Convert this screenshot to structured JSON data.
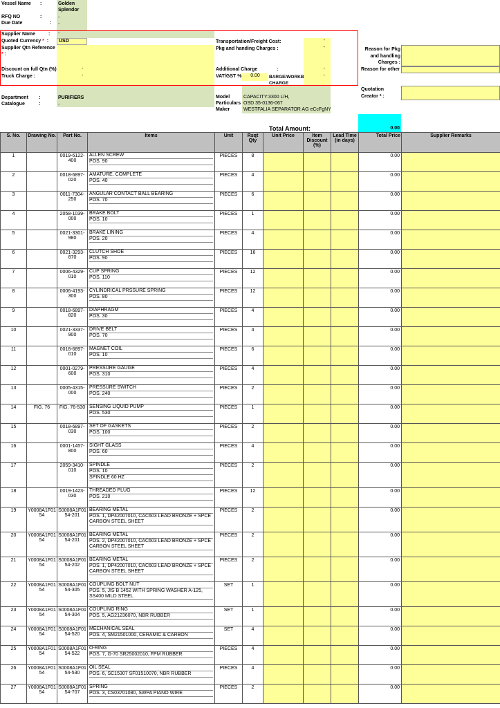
{
  "header": {
    "vessel_label": "Vessel Name",
    "vessel_value": "Golden Splendor",
    "rfq_label": "RFQ NO",
    "rfq_value": "-",
    "due_label": "Due Date",
    "due_value": "-",
    "colon": ":"
  },
  "supplier": {
    "name_label": "Supplier Name",
    "name_value": "-",
    "currency_label": "Quoted Currency",
    "currency_value": "USD",
    "ref_label": "Supplier Qtn Reference",
    "required": "*",
    "discount_label": "Discount on full Qtn  (%)",
    "discount_value": "-",
    "truck_label": "Truck Charge :",
    "truck_value": "-",
    "freight_label": "Transportation/Freight Cost:",
    "freight_value": "-",
    "pkg_label": "Pkg and handing Charges  :",
    "pkg_value": "-",
    "additional_label": "Additional Charge",
    "additional_value": "-",
    "vat_label": "VAT/GST %",
    "vat_value": "0.00",
    "barge_label": "BARGE/WORKBOAT CHARGE",
    "barge_value": "-"
  },
  "reasons": {
    "pkg_reason_label": "Reason for Pkg and handling Charges :",
    "other_reason_label": "Reason for other",
    "creator_label": "Quotation Creator * :"
  },
  "equipment": {
    "department_label": "Department",
    "department_value": "PURIFIERS",
    "catalogue_label": "Catalogue",
    "catalogue_value": "-",
    "model_label": "Model",
    "model_value": "CAPACITY:3300 L/H,",
    "particulars_label": "Particulars",
    "particulars_value": "OSD 35-0136-067",
    "maker_label": "Maker",
    "maker_value": "WESTFALIA SEPARATOR AG eCcFgNY"
  },
  "total": {
    "label": "Total Amount:",
    "value": "0.00"
  },
  "columns": [
    "S. No.",
    "Drawing No.",
    "Part No.",
    "Items",
    "Unit",
    "Rsqt Qty",
    "Unit Price",
    "Item Discount (%)",
    "Lead Time (in days)",
    "Total Price",
    "Supplier Remarks"
  ],
  "colors": {
    "input_yellow": "#ffff99",
    "info_green": "#d8e4bc",
    "total_cyan": "#00ffff",
    "header_gray": "#c0c0c0",
    "required_red": "#ff0000"
  },
  "items": [
    {
      "sno": "1",
      "drawing": "",
      "part": "0019-6122-400",
      "lines": [
        "ALLEN SCREW",
        "POS. 90"
      ],
      "unit": "PIECES",
      "qty": "8",
      "total": "0.00"
    },
    {
      "sno": "2",
      "drawing": "",
      "part": "0018-6897-020",
      "lines": [
        "AMATURE, COMPLETE",
        "POS. 40"
      ],
      "unit": "PIECES",
      "qty": "4",
      "total": "0.00"
    },
    {
      "sno": "3",
      "drawing": "",
      "part": "0011-7304-250",
      "lines": [
        "ANGULAR CONTACT BALL BEARING",
        "POS. 70"
      ],
      "unit": "PIECES",
      "qty": "6",
      "total": "0.00"
    },
    {
      "sno": "4",
      "drawing": "",
      "part": "2058-1039-000",
      "lines": [
        "BRAKE BOLT",
        "POS. 10"
      ],
      "unit": "PIECES",
      "qty": "1",
      "total": "0.00"
    },
    {
      "sno": "5",
      "drawing": "",
      "part": "0021-3301-980",
      "lines": [
        "BRAKE LINING",
        "POS. 20"
      ],
      "unit": "PIECES",
      "qty": "4",
      "total": "0.00"
    },
    {
      "sno": "6",
      "drawing": "",
      "part": "0021-3293-870",
      "lines": [
        "CLUTCH SHOE",
        "POS. 90"
      ],
      "unit": "PIECES",
      "qty": "16",
      "total": "0.00"
    },
    {
      "sno": "7",
      "drawing": "",
      "part": "0006-4329-010",
      "lines": [
        "CUP SPRING",
        "POS. 110"
      ],
      "unit": "PIECES",
      "qty": "12",
      "total": "0.00"
    },
    {
      "sno": "8",
      "drawing": "",
      "part": "0006-4193-300",
      "lines": [
        "CYLINDRICAL PRSSURE SPRING",
        "POS. 80"
      ],
      "unit": "PIECES",
      "qty": "12",
      "total": "0.00"
    },
    {
      "sno": "9",
      "drawing": "",
      "part": "0018-6897-820",
      "lines": [
        "DIAPHRAGM",
        "POS. 30"
      ],
      "unit": "PIECES",
      "qty": "4",
      "total": "0.00"
    },
    {
      "sno": "10",
      "drawing": "",
      "part": "0021-3337-900",
      "lines": [
        "DRIVE BELT",
        "POS. 70"
      ],
      "unit": "PIECES",
      "qty": "4",
      "total": "0.00"
    },
    {
      "sno": "11",
      "drawing": "",
      "part": "0018-6897-010",
      "lines": [
        "MAGNET COIL",
        "POS. 10"
      ],
      "unit": "PIECES",
      "qty": "6",
      "total": "0.00"
    },
    {
      "sno": "12",
      "drawing": "",
      "part": "0001-0279-600",
      "lines": [
        "PRESSURE GAUGE",
        "POS. 310"
      ],
      "unit": "PIECES",
      "qty": "4",
      "total": "0.00"
    },
    {
      "sno": "13",
      "drawing": "",
      "part": "0005-4315-000",
      "lines": [
        "PRESSURE SWITCH",
        "POS. 240"
      ],
      "unit": "PIECES",
      "qty": "2",
      "total": "0.00"
    },
    {
      "sno": "14",
      "drawing": "FIG. 76",
      "part": "FIG. 76-530",
      "lines": [
        "SENSING LIQUID PUMP",
        "POS. 530"
      ],
      "unit": "PIECES",
      "qty": "1",
      "total": "0.00"
    },
    {
      "sno": "15",
      "drawing": "",
      "part": "0018-6897-030",
      "lines": [
        "SET OF GASKETS",
        "POS. 100"
      ],
      "unit": "PIECES",
      "qty": "2",
      "total": "0.00"
    },
    {
      "sno": "16",
      "drawing": "",
      "part": "0001-1457-800",
      "lines": [
        "SIGHT GLASS",
        "POS. 60"
      ],
      "unit": "PIECES",
      "qty": "4",
      "total": "0.00"
    },
    {
      "sno": "17",
      "drawing": "",
      "part": "2059-3410-010",
      "lines": [
        "SPINDLE",
        "POS. 10",
        "SPINDLE 60 HZ"
      ],
      "unit": "PIECES",
      "qty": "2",
      "total": "0.00"
    },
    {
      "sno": "18",
      "drawing": "",
      "part": "0019-1423-030",
      "lines": [
        "THREADED PLUG",
        "POS. 210"
      ],
      "unit": "PIECES",
      "qty": "12",
      "total": "0.00"
    },
    {
      "sno": "19",
      "drawing": "Y0008A1F0154",
      "part": "S0008A1F0154-201",
      "lines": [
        "BEARING METAL",
        "POS. 1, DP42007010, CAC603 LEAD BRONZE + SPCE CARBON STEEL SHEET"
      ],
      "unit": "PIECES",
      "qty": "2",
      "total": "0.00"
    },
    {
      "sno": "20",
      "drawing": "Y0008A1F0154",
      "part": "S0008A1F0154-201",
      "lines": [
        "BEARING METAL",
        "POS. 2, DP42007010, CAC603 LEAD BRONZE + SPCE CARBON STEEL SHEET"
      ],
      "unit": "PIECES",
      "qty": "2",
      "total": "0.00"
    },
    {
      "sno": "21",
      "drawing": "Y0008A1F0154",
      "part": "S0008A1F0154-202",
      "lines": [
        "BEARING METAL",
        "POS. 1, DP42007010, CAC603 LEAD BRONZE + SPCE CARBON STEEL SHEET"
      ],
      "unit": "PIECES",
      "qty": "2",
      "total": "0.00"
    },
    {
      "sno": "22",
      "drawing": "Y0008A1F0154",
      "part": "S0008A1F0154-305",
      "lines": [
        "COUPLING BOLT NUT",
        "POS. 5, JIS B 1452 WITH SPRING WASHER A-125, SS400 MILD STEEL"
      ],
      "unit": "SET",
      "qty": "1",
      "total": "0.00"
    },
    {
      "sno": "23",
      "drawing": "Y0008A1F0154",
      "part": "S0008A1F0154-304",
      "lines": [
        "COUPLING RING",
        "POS. 5, AG21236070, NBR RUBBER"
      ],
      "unit": "SET",
      "qty": "1",
      "total": "0.00"
    },
    {
      "sno": "24",
      "drawing": "Y0008A1F0154",
      "part": "S0008A1F0154-520",
      "lines": [
        "MECHANICAL SEAL",
        "POS. 4, SM21501000, CERAMIC & CARBON"
      ],
      "unit": "SET",
      "qty": "4",
      "total": "0.00"
    },
    {
      "sno": "25",
      "drawing": "Y0008A1F0154",
      "part": "S0008A1F0154-522",
      "lines": [
        "O-RING",
        "POS. 7, G-70 SR25002010, FPM RUBBER"
      ],
      "unit": "PIECES",
      "qty": "4",
      "total": "0.00"
    },
    {
      "sno": "26",
      "drawing": "Y0008A1F0154",
      "part": "S0008A1F0154-530",
      "lines": [
        "OIL SEAL",
        "POS. 6, SC15307 SF01510070, NBR RUBBER"
      ],
      "unit": "PIECES",
      "qty": "4",
      "total": "0.00"
    },
    {
      "sno": "27",
      "drawing": "Y0008A1F0154",
      "part": "S0008A1F0154-707",
      "lines": [
        "SPRING",
        "POS. 3, CS03701080, SWPA PIANO WIRE"
      ],
      "unit": "PIECES",
      "qty": "2",
      "total": "0.00"
    }
  ]
}
